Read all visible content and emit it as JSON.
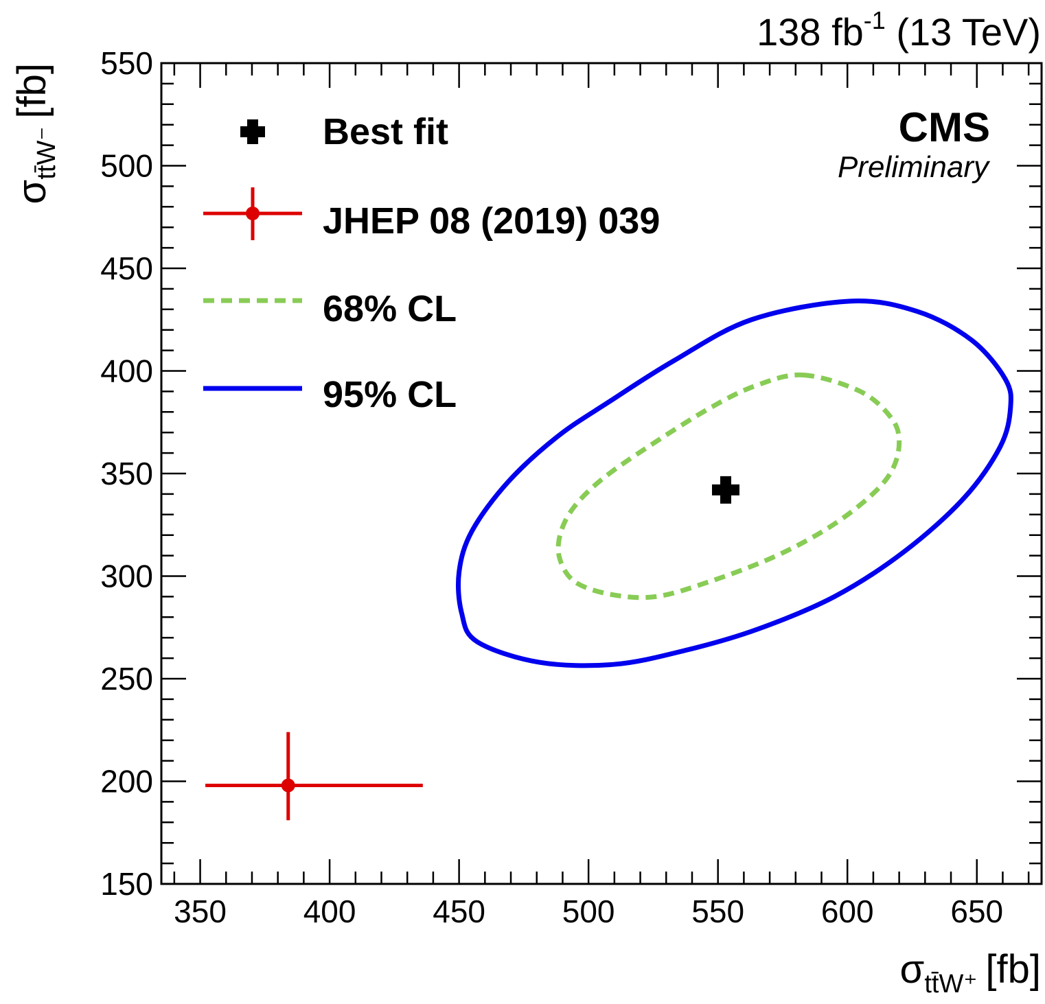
{
  "chart_data": {
    "type": "scatter",
    "lumi_label": {
      "main": "138 fb",
      "sup": "-1",
      "rest": " (13 TeV)"
    },
    "experiment": "CMS",
    "status": "Preliminary",
    "xlabel": {
      "sigma": "σ",
      "sub": "tt̄W⁺",
      "unit": "[fb]"
    },
    "ylabel": {
      "sigma": "σ",
      "sub": "tt̄W⁻",
      "unit": "[fb]"
    },
    "xlim": [
      335,
      675
    ],
    "ylim": [
      150,
      550
    ],
    "x_ticks": [
      350,
      400,
      450,
      500,
      550,
      600,
      650
    ],
    "y_ticks": [
      150,
      200,
      250,
      300,
      350,
      400,
      450,
      500,
      550
    ],
    "legend": {
      "placement": "top-left",
      "entries": [
        {
          "key": "best_fit",
          "label": "Best fit"
        },
        {
          "key": "jhep",
          "label": "JHEP 08 (2019) 039"
        },
        {
          "key": "cl68",
          "label": "68% CL"
        },
        {
          "key": "cl95",
          "label": "95% CL"
        }
      ]
    },
    "colors": {
      "best_fit": "#000000",
      "jhep": "#dd0000",
      "cl68": "#88cc55",
      "cl95": "#0000ee"
    },
    "best_fit": {
      "x": 553,
      "y": 342
    },
    "jhep": {
      "x": 384,
      "y": 198,
      "x_err": [
        352,
        436
      ],
      "y_err": [
        181,
        224
      ]
    },
    "contour_68": [
      [
        583,
        398
      ],
      [
        605,
        390
      ],
      [
        617,
        377
      ],
      [
        620,
        365
      ],
      [
        617,
        351
      ],
      [
        608,
        338
      ],
      [
        592,
        323
      ],
      [
        571,
        309
      ],
      [
        546,
        297
      ],
      [
        526,
        290
      ],
      [
        509,
        291
      ],
      [
        495,
        297
      ],
      [
        489,
        308
      ],
      [
        489,
        320
      ],
      [
        494,
        333
      ],
      [
        505,
        347
      ],
      [
        523,
        363
      ],
      [
        547,
        382
      ],
      [
        565,
        393
      ],
      [
        583,
        398
      ]
    ],
    "contour_95": [
      [
        601,
        434
      ],
      [
        627,
        429
      ],
      [
        648,
        415
      ],
      [
        661,
        396
      ],
      [
        663,
        382
      ],
      [
        659,
        363
      ],
      [
        645,
        338
      ],
      [
        622,
        312
      ],
      [
        595,
        290
      ],
      [
        565,
        274
      ],
      [
        538,
        264
      ],
      [
        510,
        257
      ],
      [
        481,
        258
      ],
      [
        457,
        268
      ],
      [
        451,
        282
      ],
      [
        450,
        302
      ],
      [
        455,
        322
      ],
      [
        469,
        346
      ],
      [
        488,
        368
      ],
      [
        508,
        385
      ],
      [
        533,
        405
      ],
      [
        563,
        425
      ],
      [
        601,
        434
      ]
    ]
  }
}
